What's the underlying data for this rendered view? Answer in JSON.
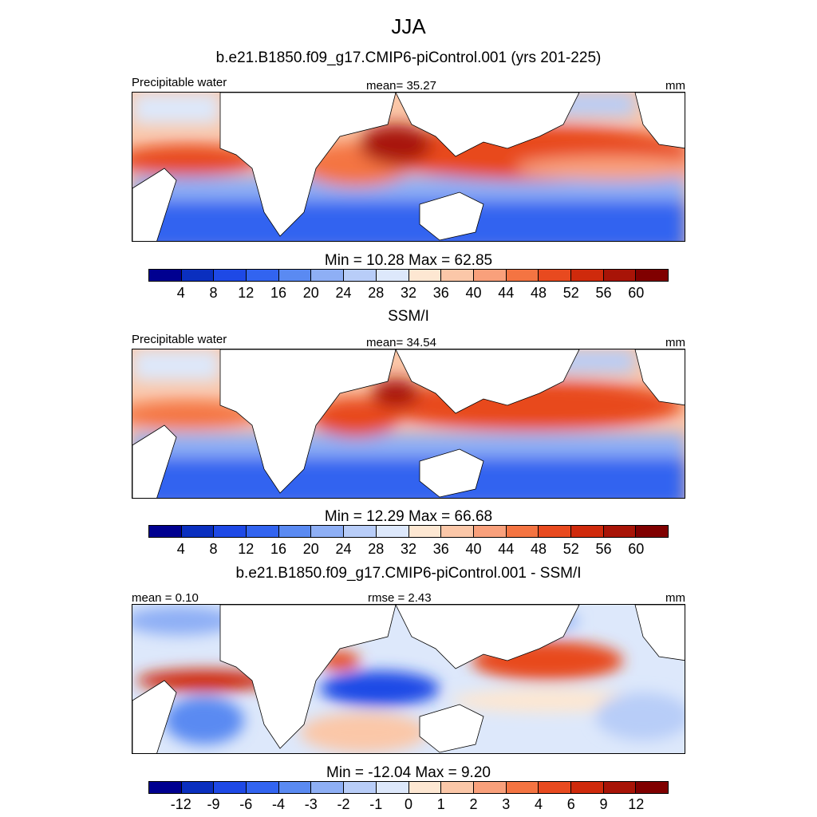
{
  "title": "JJA",
  "panel1": {
    "subtitle": "b.e21.B1850.f09_g17.CMIP6-piControl.001 (yrs 201-225)",
    "left_label": "Precipitable water",
    "center_label": "mean=  35.27",
    "right_label": "mm",
    "minmax": "Min =  10.28 Max =  62.85"
  },
  "panel2": {
    "subtitle": "SSM/I",
    "left_label": "Precipitable water",
    "center_label": "mean=  34.54",
    "right_label": "mm",
    "minmax": "Min =  12.29 Max =  66.68"
  },
  "panel3": {
    "subtitle": "b.e21.B1850.f09_g17.CMIP6-piControl.001 - SSM/I",
    "left_label": "mean =   0.10",
    "center_label": "rmse =   2.43",
    "right_label": "mm",
    "minmax": "Min = -12.04 Max =   9.20"
  },
  "colorbar_abs": {
    "ticks": [
      "4",
      "8",
      "12",
      "16",
      "20",
      "24",
      "28",
      "32",
      "36",
      "40",
      "44",
      "48",
      "52",
      "56",
      "60"
    ],
    "colors": [
      "#000090",
      "#0a2fbf",
      "#1e49e6",
      "#3264f0",
      "#5a8af2",
      "#8eaff5",
      "#b8cdf8",
      "#dde8fb",
      "#fde7d2",
      "#fbc7a8",
      "#f9a07b",
      "#f47442",
      "#e84a1f",
      "#cf2a0c",
      "#a81407",
      "#800000"
    ]
  },
  "colorbar_diff": {
    "ticks": [
      "-12",
      "-9",
      "-6",
      "-4",
      "-3",
      "-2",
      "-1",
      "0",
      "1",
      "2",
      "3",
      "4",
      "6",
      "9",
      "12"
    ],
    "colors": [
      "#000090",
      "#0a2fbf",
      "#1e49e6",
      "#3264f0",
      "#5a8af2",
      "#8eaff5",
      "#b8cdf8",
      "#dde8fb",
      "#fde7d2",
      "#fbc7a8",
      "#f9a07b",
      "#f47442",
      "#e84a1f",
      "#cf2a0c",
      "#a81407",
      "#800000"
    ]
  }
}
